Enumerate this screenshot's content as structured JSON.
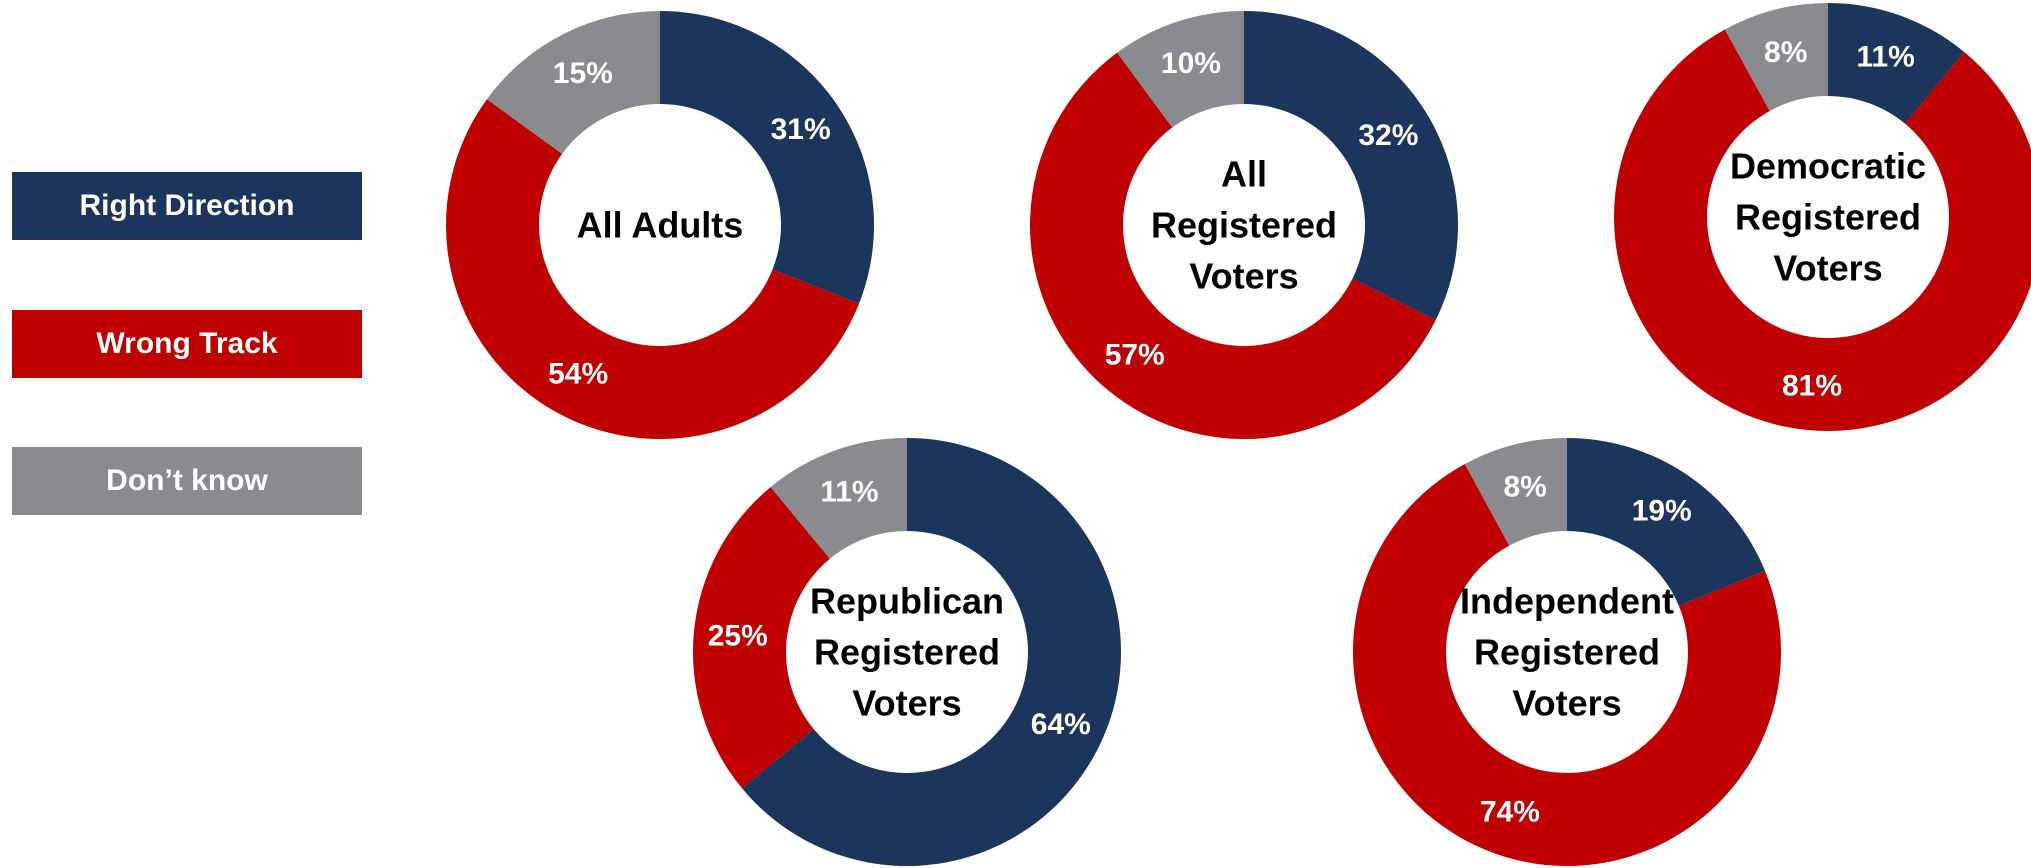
{
  "colors": {
    "right_direction": "#1b355c",
    "wrong_track": "#c00000",
    "dont_know": "#898b8e"
  },
  "legend": {
    "items": [
      {
        "label": "Right Direction",
        "color": "#1b355c"
      },
      {
        "label": "Wrong Track",
        "color": "#c00000"
      },
      {
        "label": "Don’t know",
        "color": "#898b8e"
      }
    ]
  },
  "chart_data": [
    {
      "type": "pie",
      "center_label": [
        "All Adults"
      ],
      "slices": [
        {
          "category": "Right Direction",
          "value": 31,
          "label": "31%"
        },
        {
          "category": "Wrong Track",
          "value": 54,
          "label": "54%"
        },
        {
          "category": "Don’t know",
          "value": 15,
          "label": "15%"
        }
      ]
    },
    {
      "type": "pie",
      "center_label": [
        "All",
        "Registered",
        "Voters"
      ],
      "slices": [
        {
          "category": "Right Direction",
          "value": 32,
          "label": "32%"
        },
        {
          "category": "Wrong Track",
          "value": 57,
          "label": "57%"
        },
        {
          "category": "Don’t know",
          "value": 10,
          "label": "10%"
        }
      ]
    },
    {
      "type": "pie",
      "center_label": [
        "Democratic",
        "Registered",
        "Voters"
      ],
      "slices": [
        {
          "category": "Right Direction",
          "value": 11,
          "label": "11%"
        },
        {
          "category": "Wrong Track",
          "value": 81,
          "label": "81%"
        },
        {
          "category": "Don’t know",
          "value": 8,
          "label": "8%"
        }
      ]
    },
    {
      "type": "pie",
      "center_label": [
        "Republican",
        "Registered",
        "Voters"
      ],
      "slices": [
        {
          "category": "Right Direction",
          "value": 64,
          "label": "64%"
        },
        {
          "category": "Wrong Track",
          "value": 25,
          "label": "25%"
        },
        {
          "category": "Don’t know",
          "value": 11,
          "label": "11%"
        }
      ]
    },
    {
      "type": "pie",
      "center_label": [
        "Independent",
        "Registered",
        "Voters"
      ],
      "slices": [
        {
          "category": "Right Direction",
          "value": 19,
          "label": "19%"
        },
        {
          "category": "Wrong Track",
          "value": 74,
          "label": "74%"
        },
        {
          "category": "Don’t know",
          "value": 8,
          "label": "8%"
        }
      ]
    }
  ]
}
